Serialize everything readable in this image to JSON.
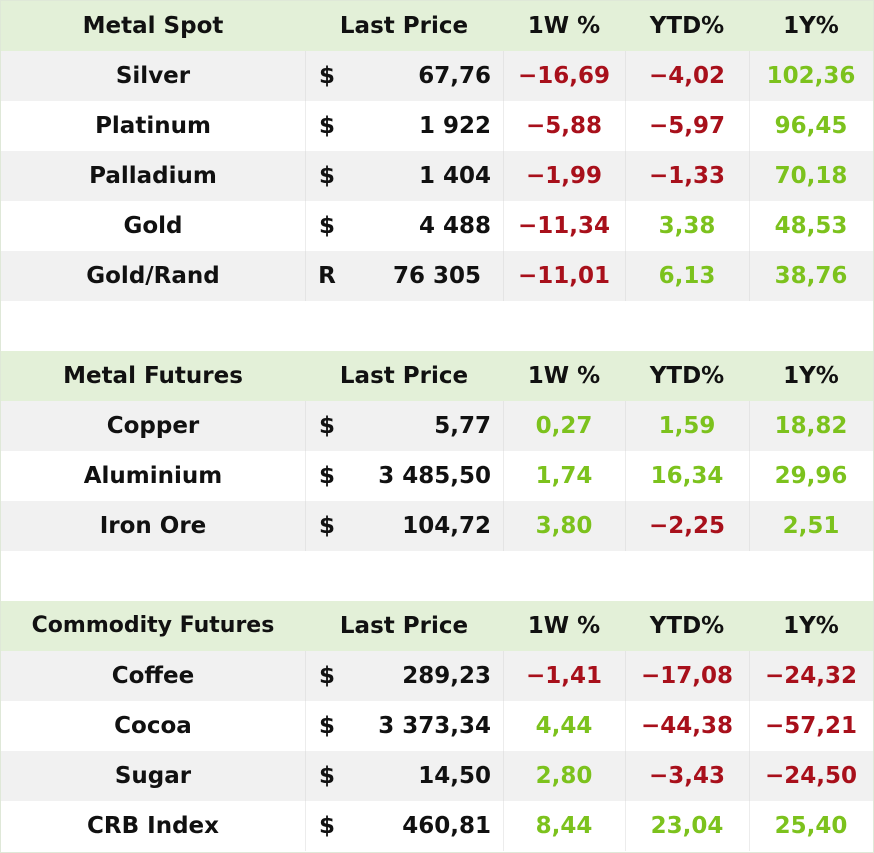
{
  "colors": {
    "positive": "#7cc21d",
    "negative": "#a8101b",
    "header_bg": "#e3f0d8",
    "alt_row_bg": "#f1f1f1"
  },
  "headers": {
    "last_price": "Last Price",
    "w1": "1W %",
    "ytd": "YTD%",
    "y1": "1Y%"
  },
  "sections": [
    {
      "title": "Metal Spot",
      "rows": [
        {
          "name": "Silver",
          "cur": "$",
          "price": "67,76",
          "w1": "-16,69",
          "ytd": "-4,02",
          "y1": "102,36"
        },
        {
          "name": "Platinum",
          "cur": "$",
          "price": "1 922",
          "w1": "-5,88",
          "ytd": "-5,97",
          "y1": "96,45"
        },
        {
          "name": "Palladium",
          "cur": "$",
          "price": "1 404",
          "w1": "-1,99",
          "ytd": "-1,33",
          "y1": "70,18"
        },
        {
          "name": "Gold",
          "cur": "$",
          "price": "4 488",
          "w1": "-11,34",
          "ytd": "3,38",
          "y1": "48,53"
        },
        {
          "name": "Gold/Rand",
          "cur": "R",
          "price": "76 305",
          "w1": "-11,01",
          "ytd": "6,13",
          "y1": "38,76"
        }
      ]
    },
    {
      "title": "Metal Futures",
      "rows": [
        {
          "name": "Copper",
          "cur": "$",
          "price": "5,77",
          "w1": "0,27",
          "ytd": "1,59",
          "y1": "18,82"
        },
        {
          "name": "Aluminium",
          "cur": "$",
          "price": "3 485,50",
          "w1": "1,74",
          "ytd": "16,34",
          "y1": "29,96"
        },
        {
          "name": "Iron Ore",
          "cur": "$",
          "price": "104,72",
          "w1": "3,80",
          "ytd": "-2,25",
          "y1": "2,51"
        }
      ]
    },
    {
      "title": "Commodity Futures",
      "rows": [
        {
          "name": "Coffee",
          "cur": "$",
          "price": "289,23",
          "w1": "-1,41",
          "ytd": "-17,08",
          "y1": "-24,32"
        },
        {
          "name": "Cocoa",
          "cur": "$",
          "price": "3 373,34",
          "w1": "4,44",
          "ytd": "-44,38",
          "y1": "-57,21"
        },
        {
          "name": "Sugar",
          "cur": "$",
          "price": "14,50",
          "w1": "2,80",
          "ytd": "-3,43",
          "y1": "-24,50"
        },
        {
          "name": "CRB Index",
          "cur": "$",
          "price": "460,81",
          "w1": "8,44",
          "ytd": "23,04",
          "y1": "25,40"
        }
      ]
    }
  ]
}
